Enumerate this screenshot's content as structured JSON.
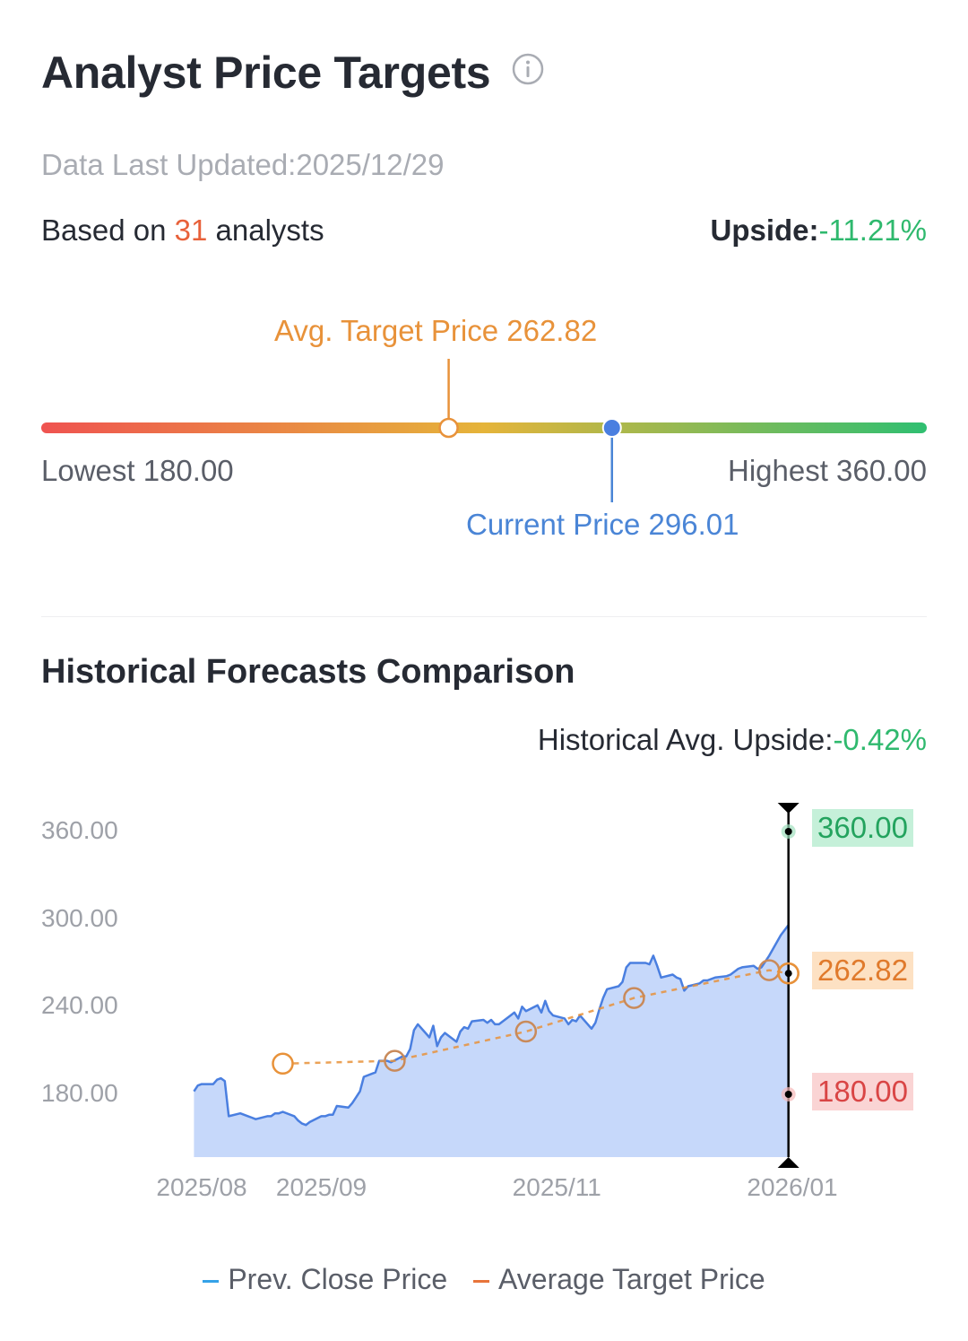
{
  "header": {
    "title": "Analyst Price Targets",
    "updated": "Data Last Updated:2025/12/29",
    "based_prefix": "Based on",
    "analyst_count": "31",
    "based_suffix": "analysts",
    "upside_label": "Upside:",
    "upside_value": "-11.21%"
  },
  "range_bar": {
    "avg_label": "Avg. Target Price 262.82",
    "lowest_label": "Lowest 180.00",
    "highest_label": "Highest 360.00",
    "current_label": "Current Price 296.01",
    "lowest": 180.0,
    "highest": 360.0,
    "avg_target": 262.82,
    "current": 296.01
  },
  "history": {
    "title": "Historical Forecasts Comparison",
    "upside_label": "Historical Avg. Upside:",
    "upside_value": "-0.42%"
  },
  "tags": {
    "high": "360.00",
    "avg": "262.82",
    "low": "180.00"
  },
  "legend": {
    "close": "Prev. Close Price",
    "avg": "Average Target Price"
  },
  "colors": {
    "close_line": "#4a7fe0",
    "close_fill": "#c6d8fa",
    "avg_line": "#e8923a",
    "positive": "#2fb96e",
    "negative": "#e8613a",
    "bar_start": "#ef5350",
    "bar_mid": "#e0b83a",
    "bar_end": "#2fbf71"
  },
  "chart_data": {
    "type": "area",
    "yticks": [
      "360.00",
      "300.00",
      "240.00",
      "180.00"
    ],
    "ytick_values": [
      360,
      300,
      240,
      180
    ],
    "xticks": [
      "2025/08",
      "2025/09",
      "2025/11",
      "2026/01"
    ],
    "xtick_dates": [
      "2025-08-01",
      "2025-09-01",
      "2025-11-01",
      "2026-01-01"
    ],
    "series": [
      {
        "name": "Prev. Close Price",
        "points": [
          [
            "2025-07-30",
            182
          ],
          [
            "2025-07-31",
            186
          ],
          [
            "2025-08-01",
            187
          ],
          [
            "2025-08-04",
            187
          ],
          [
            "2025-08-05",
            190
          ],
          [
            "2025-08-06",
            191
          ],
          [
            "2025-08-07",
            189
          ],
          [
            "2025-08-08",
            165
          ],
          [
            "2025-08-11",
            167
          ],
          [
            "2025-08-12",
            166
          ],
          [
            "2025-08-13",
            165
          ],
          [
            "2025-08-14",
            164
          ],
          [
            "2025-08-15",
            163
          ],
          [
            "2025-08-18",
            165
          ],
          [
            "2025-08-19",
            165
          ],
          [
            "2025-08-20",
            167
          ],
          [
            "2025-08-21",
            167
          ],
          [
            "2025-08-22",
            168
          ],
          [
            "2025-08-25",
            165
          ],
          [
            "2025-08-26",
            162
          ],
          [
            "2025-08-27",
            160
          ],
          [
            "2025-08-28",
            159
          ],
          [
            "2025-08-29",
            161
          ],
          [
            "2025-09-01",
            165
          ],
          [
            "2025-09-02",
            165
          ],
          [
            "2025-09-03",
            166
          ],
          [
            "2025-09-04",
            166
          ],
          [
            "2025-09-05",
            172
          ],
          [
            "2025-09-08",
            171
          ],
          [
            "2025-09-09",
            174
          ],
          [
            "2025-09-10",
            178
          ],
          [
            "2025-09-11",
            182
          ],
          [
            "2025-09-12",
            192
          ],
          [
            "2025-09-15",
            195
          ],
          [
            "2025-09-16",
            203
          ],
          [
            "2025-09-17",
            203
          ],
          [
            "2025-09-18",
            203
          ],
          [
            "2025-09-19",
            202
          ],
          [
            "2025-09-22",
            206
          ],
          [
            "2025-09-23",
            206
          ],
          [
            "2025-09-24",
            211
          ],
          [
            "2025-09-25",
            224
          ],
          [
            "2025-09-26",
            228
          ],
          [
            "2025-09-29",
            219
          ],
          [
            "2025-09-30",
            227
          ],
          [
            "2025-10-01",
            213
          ],
          [
            "2025-10-02",
            219
          ],
          [
            "2025-10-03",
            222
          ],
          [
            "2025-10-06",
            216
          ],
          [
            "2025-10-07",
            223
          ],
          [
            "2025-10-08",
            226
          ],
          [
            "2025-10-09",
            225
          ],
          [
            "2025-10-10",
            230
          ],
          [
            "2025-10-13",
            231
          ],
          [
            "2025-10-14",
            229
          ],
          [
            "2025-10-15",
            231
          ],
          [
            "2025-10-16",
            228
          ],
          [
            "2025-10-17",
            228
          ],
          [
            "2025-10-20",
            234
          ],
          [
            "2025-10-21",
            236
          ],
          [
            "2025-10-22",
            232
          ],
          [
            "2025-10-23",
            240
          ],
          [
            "2025-10-24",
            237
          ],
          [
            "2025-10-27",
            241
          ],
          [
            "2025-10-28",
            236
          ],
          [
            "2025-10-29",
            244
          ],
          [
            "2025-10-30",
            237
          ],
          [
            "2025-10-31",
            234
          ],
          [
            "2025-11-03",
            232
          ],
          [
            "2025-11-04",
            228
          ],
          [
            "2025-11-05",
            231
          ],
          [
            "2025-11-06",
            230
          ],
          [
            "2025-11-07",
            234
          ],
          [
            "2025-11-10",
            225
          ],
          [
            "2025-11-11",
            229
          ],
          [
            "2025-11-12",
            238
          ],
          [
            "2025-11-13",
            246
          ],
          [
            "2025-11-14",
            252
          ],
          [
            "2025-11-17",
            254
          ],
          [
            "2025-11-18",
            257
          ],
          [
            "2025-11-19",
            267
          ],
          [
            "2025-11-20",
            270
          ],
          [
            "2025-11-21",
            270
          ],
          [
            "2025-11-24",
            270
          ],
          [
            "2025-11-25",
            269
          ],
          [
            "2025-11-26",
            275
          ],
          [
            "2025-11-27",
            268
          ],
          [
            "2025-11-28",
            260
          ],
          [
            "2025-12-01",
            262
          ],
          [
            "2025-12-02",
            260
          ],
          [
            "2025-12-03",
            259
          ],
          [
            "2025-12-04",
            251
          ],
          [
            "2025-12-05",
            254
          ],
          [
            "2025-12-08",
            256
          ],
          [
            "2025-12-09",
            258
          ],
          [
            "2025-12-10",
            258
          ],
          [
            "2025-12-11",
            259
          ],
          [
            "2025-12-12",
            260
          ],
          [
            "2025-12-15",
            261
          ],
          [
            "2025-12-16",
            262
          ],
          [
            "2025-12-17",
            264
          ],
          [
            "2025-12-18",
            266
          ],
          [
            "2025-12-19",
            267
          ],
          [
            "2025-12-22",
            268
          ],
          [
            "2025-12-23",
            266
          ],
          [
            "2025-12-24",
            267
          ],
          [
            "2025-12-26",
            275
          ],
          [
            "2025-12-29",
            289
          ],
          [
            "2025-12-31",
            296
          ]
        ]
      },
      {
        "name": "Average Target Price",
        "points": [
          [
            "2025-08-22",
            201
          ],
          [
            "2025-09-20",
            203
          ],
          [
            "2025-10-24",
            223
          ],
          [
            "2025-11-21",
            246
          ],
          [
            "2025-12-26",
            265
          ],
          [
            "2025-12-31",
            262.82
          ]
        ]
      }
    ],
    "latest": {
      "date": "2025-12-31",
      "high": 360.0,
      "avg": 262.82,
      "low": 180.0
    }
  }
}
